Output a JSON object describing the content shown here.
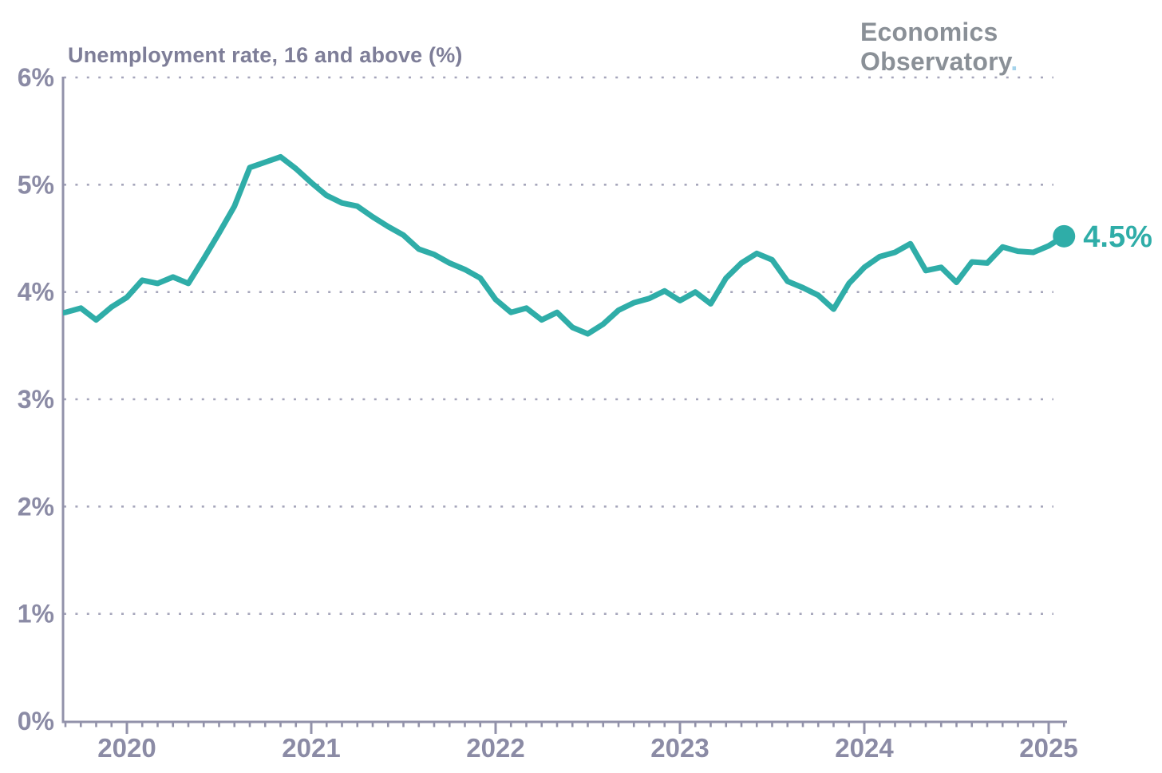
{
  "page": {
    "background": "#ffffff"
  },
  "logo": {
    "line1": "Economics",
    "line2": "Observatory",
    "dot": ".",
    "text_color": "#8a9097",
    "dot_color": "#a5d3eb"
  },
  "chart_data": {
    "type": "line",
    "title": "Unemployment rate, 16 and above (%)",
    "xlabel": "",
    "ylabel": "",
    "ylim": [
      0,
      6
    ],
    "grid": "dotted-horizontal",
    "legend_position": "none",
    "colors": {
      "line": "#2fada8",
      "axis": "#9292aa",
      "grid": "#a6a6bb",
      "tick_label": "#8b8ba5",
      "title": "#7e7e98",
      "annotation": "#2fada8"
    },
    "y_ticks": [
      {
        "value": 0,
        "label": "0%"
      },
      {
        "value": 1,
        "label": "1%"
      },
      {
        "value": 2,
        "label": "2%"
      },
      {
        "value": 3,
        "label": "3%"
      },
      {
        "value": 4,
        "label": "4%"
      },
      {
        "value": 5,
        "label": "5%"
      },
      {
        "value": 6,
        "label": "6%"
      }
    ],
    "x_ticks": [
      {
        "date": "2020-01",
        "label": "2020"
      },
      {
        "date": "2021-01",
        "label": "2021"
      },
      {
        "date": "2022-01",
        "label": "2022"
      },
      {
        "date": "2023-01",
        "label": "2023"
      },
      {
        "date": "2024-01",
        "label": "2024"
      },
      {
        "date": "2025-01",
        "label": "2025"
      }
    ],
    "annotation": {
      "label": "4.5%",
      "date": "2025-02",
      "value": 4.52
    },
    "series": [
      {
        "name": "Unemployment rate, 16 and above (%)",
        "points": [
          [
            "2019-08",
            3.79
          ],
          [
            "2019-09",
            3.81
          ],
          [
            "2019-10",
            3.85
          ],
          [
            "2019-11",
            3.74
          ],
          [
            "2019-12",
            3.86
          ],
          [
            "2020-01",
            3.95
          ],
          [
            "2020-02",
            4.11
          ],
          [
            "2020-03",
            4.08
          ],
          [
            "2020-04",
            4.14
          ],
          [
            "2020-05",
            4.08
          ],
          [
            "2020-06",
            4.31
          ],
          [
            "2020-07",
            4.55
          ],
          [
            "2020-08",
            4.8
          ],
          [
            "2020-09",
            5.16
          ],
          [
            "2020-10",
            5.21
          ],
          [
            "2020-11",
            5.26
          ],
          [
            "2020-12",
            5.15
          ],
          [
            "2021-01",
            5.02
          ],
          [
            "2021-02",
            4.9
          ],
          [
            "2021-03",
            4.83
          ],
          [
            "2021-04",
            4.8
          ],
          [
            "2021-05",
            4.7
          ],
          [
            "2021-06",
            4.61
          ],
          [
            "2021-07",
            4.53
          ],
          [
            "2021-08",
            4.4
          ],
          [
            "2021-09",
            4.35
          ],
          [
            "2021-10",
            4.27
          ],
          [
            "2021-11",
            4.21
          ],
          [
            "2021-12",
            4.13
          ],
          [
            "2022-01",
            3.93
          ],
          [
            "2022-02",
            3.81
          ],
          [
            "2022-03",
            3.85
          ],
          [
            "2022-04",
            3.74
          ],
          [
            "2022-05",
            3.81
          ],
          [
            "2022-06",
            3.67
          ],
          [
            "2022-07",
            3.61
          ],
          [
            "2022-08",
            3.7
          ],
          [
            "2022-09",
            3.83
          ],
          [
            "2022-10",
            3.9
          ],
          [
            "2022-11",
            3.94
          ],
          [
            "2022-12",
            4.01
          ],
          [
            "2023-01",
            3.92
          ],
          [
            "2023-02",
            4.0
          ],
          [
            "2023-03",
            3.89
          ],
          [
            "2023-04",
            4.13
          ],
          [
            "2023-05",
            4.27
          ],
          [
            "2023-06",
            4.36
          ],
          [
            "2023-07",
            4.3
          ],
          [
            "2023-08",
            4.1
          ],
          [
            "2023-09",
            4.04
          ],
          [
            "2023-10",
            3.97
          ],
          [
            "2023-11",
            3.84
          ],
          [
            "2023-12",
            4.08
          ],
          [
            "2024-01",
            4.23
          ],
          [
            "2024-02",
            4.33
          ],
          [
            "2024-03",
            4.37
          ],
          [
            "2024-04",
            4.45
          ],
          [
            "2024-05",
            4.2
          ],
          [
            "2024-06",
            4.23
          ],
          [
            "2024-07",
            4.09
          ],
          [
            "2024-08",
            4.28
          ],
          [
            "2024-09",
            4.27
          ],
          [
            "2024-10",
            4.42
          ],
          [
            "2024-11",
            4.38
          ],
          [
            "2024-12",
            4.37
          ],
          [
            "2025-01",
            4.43
          ],
          [
            "2025-02",
            4.52
          ]
        ]
      }
    ]
  }
}
